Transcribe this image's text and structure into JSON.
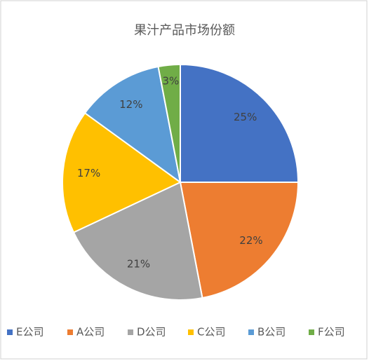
{
  "chart_data": {
    "type": "pie",
    "title": "果汁产品市场份额",
    "categories": [
      "E公司",
      "A公司",
      "D公司",
      "C公司",
      "B公司",
      "F公司"
    ],
    "values": [
      25,
      22,
      21,
      17,
      12,
      3
    ],
    "value_labels": [
      "25%",
      "22%",
      "21%",
      "17%",
      "12%",
      "3%"
    ],
    "colors": [
      "#4472c4",
      "#ed7d31",
      "#a5a5a5",
      "#ffc000",
      "#5b9bd5",
      "#70ad47"
    ],
    "legend": "bottom"
  }
}
